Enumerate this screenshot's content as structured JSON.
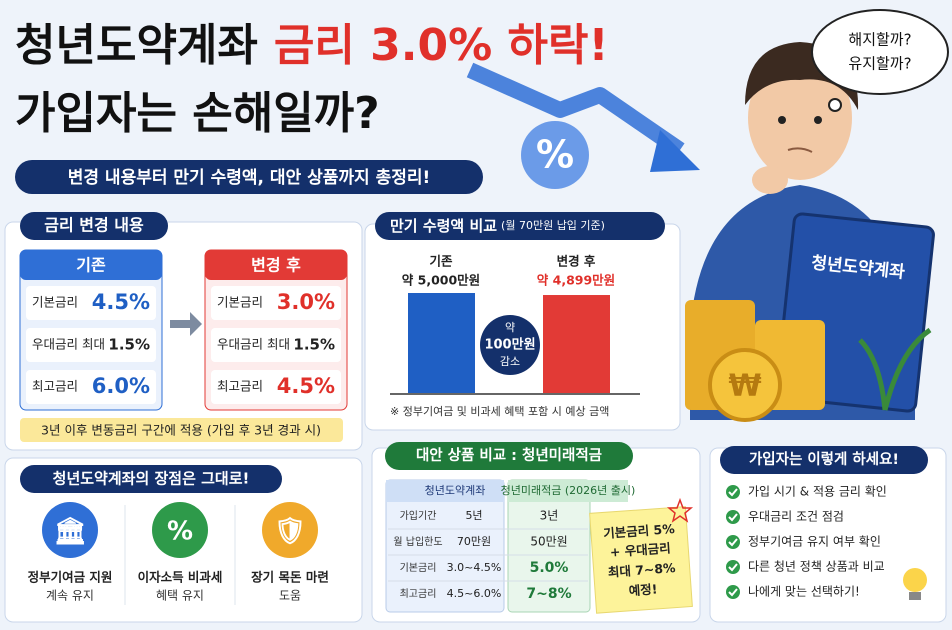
{
  "header": {
    "title_main": "청년도약계좌",
    "title_highlight": "금리 3.0% 하락!",
    "title_line2": "가입자는 손해일까?",
    "subtitle": "변경 내용부터 만기 수령액, 대안 상품까지 총정리!"
  },
  "thought": [
    "해지할까?",
    "유지할까?"
  ],
  "book_label": "청년도약계좌",
  "rate_change": {
    "title": "금리 변경 내용",
    "before": {
      "header": "기존",
      "rows": [
        [
          "기본금리",
          "4.5%"
        ],
        [
          "우대금리 최대",
          "1.5%"
        ],
        [
          "최고금리",
          "6.0%"
        ]
      ]
    },
    "after": {
      "header": "변경 후",
      "rows": [
        [
          "기본금리",
          "3.0%"
        ],
        [
          "우대금리 최대",
          "1.5%"
        ],
        [
          "최고금리",
          "4.5%"
        ]
      ]
    },
    "note": "3년 이후 변동금리 구간에 적용 (가입 후 3년 경과 시)"
  },
  "comparison": {
    "type": "bar",
    "title": "만기 수령액 비교",
    "subtitle": "(월 70만원 납입 기준)",
    "categories": [
      "기존",
      "변경 후"
    ],
    "values": [
      5000,
      4899
    ],
    "value_labels": [
      "약 5,000만원",
      "약 4,899만원"
    ],
    "colors": [
      "#1f5fc4",
      "#e23a36"
    ],
    "badge": [
      "약",
      "100만원",
      "감소"
    ],
    "note": "※ 정부기여금 및 비과세 혜택 포함 시 예상 금액"
  },
  "merits": {
    "title": "청년도약계좌의 장점은 그대로!",
    "items": [
      [
        "정부기여금 지원",
        "계속 유지"
      ],
      [
        "이자소득 비과세",
        "혜택 유지"
      ],
      [
        "장기 목돈 마련",
        "도움"
      ]
    ]
  },
  "alternative": {
    "title": "대안 상품 비교 : 청년미래적금",
    "headers": [
      "청년도약계좌",
      "청년미래적금 (2026년 출시)"
    ],
    "rows": [
      [
        "가입기간",
        "5년",
        "3년"
      ],
      [
        "월 납입한도",
        "70만원",
        "50만원"
      ],
      [
        "기본금리",
        "3.0~4.5%",
        "5.0%"
      ],
      [
        "최고금리",
        "4.5~6.0%",
        "7~8%"
      ]
    ],
    "sticky": [
      "기본금리 5%",
      "+ 우대금리",
      "최대 7~8%",
      "예정!"
    ]
  },
  "tips": {
    "title": "가입자는 이렇게 하세요!",
    "items": [
      "가입 시기 & 적용 금리 확인",
      "우대금리 조건 점검",
      "정부기여금 유지 여부 확인",
      "다른 청년 정책 상품과 비교",
      "나에게 맞는 선택하기!"
    ]
  }
}
